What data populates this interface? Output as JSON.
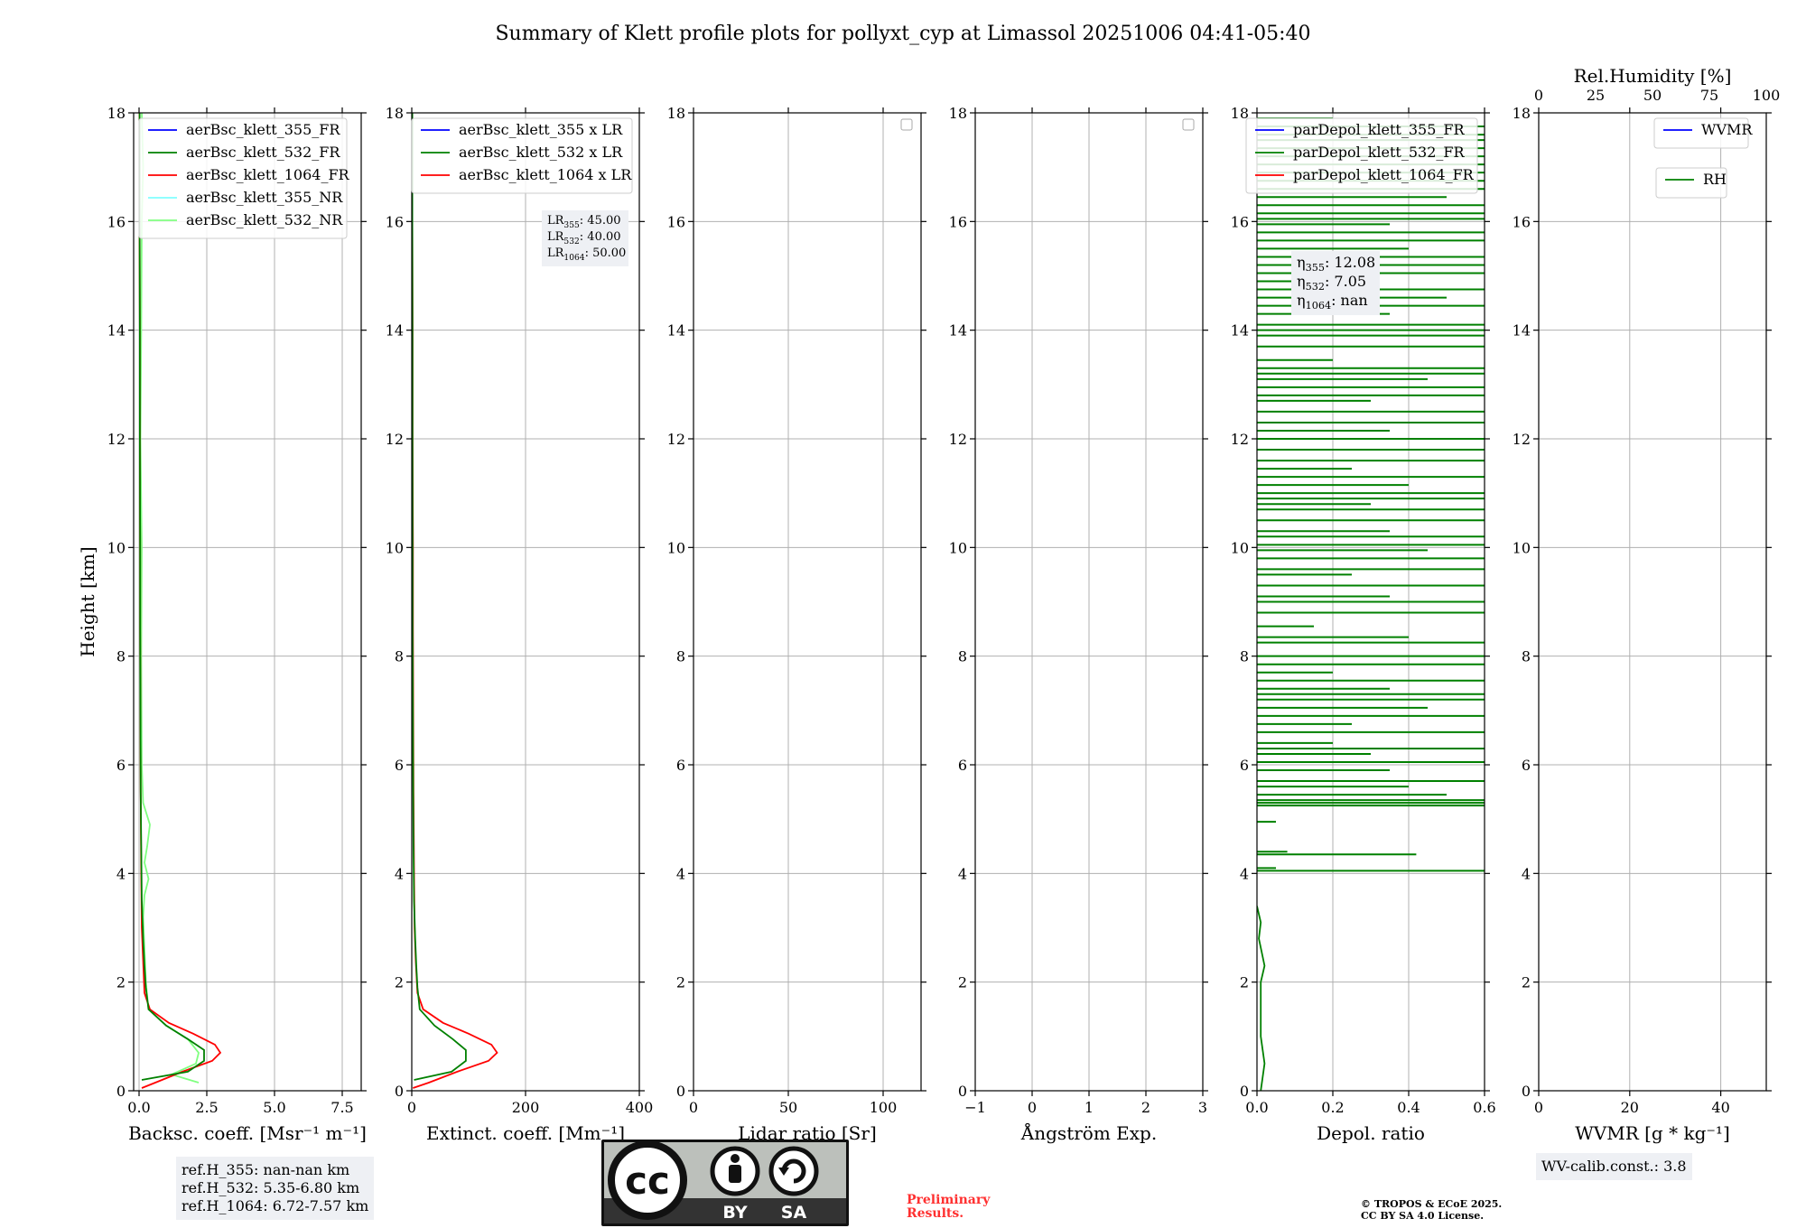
{
  "figure_title": "Summary of Klett profile plots for pollyxt_cyp at Limassol 20251006 04:41-05:40",
  "colors": {
    "blue": "#0000ff",
    "green": "#008000",
    "red": "#ff0000",
    "cyan": "#80ffff",
    "lightgreen": "#80ff80",
    "grid": "#b0b0b0",
    "textbox": "#eef0f4"
  },
  "chart_data": [
    {
      "type": "line",
      "id": "bsc",
      "xlabel": "Backsc. coeff. [Msr⁻¹ m⁻¹]",
      "ylabel": "Height [km]",
      "xlim": [
        -0.2,
        8.2
      ],
      "ylim": [
        0,
        18
      ],
      "xticks": [
        0,
        2.5,
        5,
        7.5
      ],
      "xticklabels": [
        "0.0",
        "2.5",
        "5.0",
        "7.5"
      ],
      "yticks": [
        0,
        2,
        4,
        6,
        8,
        10,
        12,
        14,
        16,
        18
      ],
      "legend": [
        "aerBsc_klett_355_FR",
        "aerBsc_klett_532_FR",
        "aerBsc_klett_1064_FR",
        "aerBsc_klett_355_NR",
        "aerBsc_klett_532_NR"
      ],
      "legend_colors": [
        "blue",
        "green",
        "red",
        "cyan",
        "lightgreen"
      ],
      "series": [
        {
          "name": "aerBsc_klett_532_NR",
          "color": "lightgreen",
          "points": [
            [
              2.2,
              0.15
            ],
            [
              1.2,
              0.3
            ],
            [
              2.1,
              0.5
            ],
            [
              2.2,
              0.7
            ],
            [
              1.8,
              0.95
            ],
            [
              1.0,
              1.2
            ],
            [
              0.35,
              1.5
            ],
            [
              0.25,
              2.0
            ],
            [
              0.2,
              2.6
            ],
            [
              0.15,
              3.2
            ],
            [
              0.2,
              3.6
            ],
            [
              0.35,
              3.9
            ],
            [
              0.2,
              4.2
            ],
            [
              0.3,
              4.5
            ],
            [
              0.4,
              4.9
            ],
            [
              0.15,
              5.3
            ],
            [
              0.1,
              6
            ],
            [
              0.08,
              8
            ],
            [
              0.1,
              10
            ],
            [
              0.05,
              12
            ],
            [
              0.08,
              14
            ],
            [
              0.1,
              16
            ],
            [
              0.15,
              17
            ],
            [
              0.1,
              18
            ]
          ]
        },
        {
          "name": "aerBsc_klett_1064_FR",
          "color": "red",
          "points": [
            [
              0.1,
              0.05
            ],
            [
              0.6,
              0.15
            ],
            [
              1.6,
              0.35
            ],
            [
              2.7,
              0.55
            ],
            [
              3.0,
              0.7
            ],
            [
              2.8,
              0.85
            ],
            [
              2.0,
              1.05
            ],
            [
              1.1,
              1.25
            ],
            [
              0.4,
              1.5
            ],
            [
              0.2,
              1.8
            ],
            [
              0.15,
              2.4
            ],
            [
              0.1,
              3.0
            ],
            [
              0.08,
              4.0
            ],
            [
              0.06,
              5.5
            ],
            [
              0.05,
              7
            ],
            [
              0.04,
              8.5
            ],
            [
              0.04,
              10
            ],
            [
              0.03,
              12
            ],
            [
              0.03,
              14
            ],
            [
              0.02,
              16
            ],
            [
              0.02,
              18
            ]
          ]
        },
        {
          "name": "aerBsc_klett_532_FR",
          "color": "green",
          "points": [
            [
              0.1,
              0.2
            ],
            [
              1.8,
              0.35
            ],
            [
              2.4,
              0.55
            ],
            [
              2.4,
              0.75
            ],
            [
              1.8,
              0.95
            ],
            [
              1.0,
              1.2
            ],
            [
              0.35,
              1.5
            ],
            [
              0.25,
              1.9
            ],
            [
              0.2,
              2.3
            ],
            [
              0.15,
              2.8
            ],
            [
              0.1,
              3.5
            ],
            [
              0.08,
              4.5
            ],
            [
              0.06,
              5.5
            ],
            [
              0.05,
              7
            ],
            [
              0.04,
              8.5
            ],
            [
              0.04,
              10
            ],
            [
              0.03,
              12
            ],
            [
              0.03,
              14
            ],
            [
              0.02,
              16
            ],
            [
              0.02,
              18
            ]
          ]
        }
      ],
      "note": [
        "ref.H_355: nan-nan km",
        "ref.H_532: 5.35-6.80 km",
        "ref.H_1064: 6.72-7.57 km"
      ]
    },
    {
      "type": "line",
      "id": "ext",
      "xlabel": "Extinct. coeff. [Mm⁻¹]",
      "xlim": [
        0,
        400
      ],
      "ylim": [
        0,
        18
      ],
      "xticks": [
        0,
        200,
        400
      ],
      "xticklabels": [
        "0",
        "200",
        "400"
      ],
      "yticks": [
        0,
        2,
        4,
        6,
        8,
        10,
        12,
        14,
        16,
        18
      ],
      "legend": [
        "aerBsc_klett_355 x LR",
        "aerBsc_klett_532 x LR",
        "aerBsc_klett_1064 x LR"
      ],
      "legend_colors": [
        "blue",
        "green",
        "red"
      ],
      "lr_box": [
        {
          "base": "LR",
          "sub": "355",
          "value": ": 45.00"
        },
        {
          "base": "LR",
          "sub": "532",
          "value": ": 40.00"
        },
        {
          "base": "LR",
          "sub": "1064",
          "value": ": 50.00"
        }
      ],
      "series": [
        {
          "name": "aerBsc_klett_1064 x LR",
          "color": "red",
          "points": [
            [
              2,
              0.05
            ],
            [
              30,
              0.15
            ],
            [
              80,
              0.35
            ],
            [
              135,
              0.55
            ],
            [
              150,
              0.7
            ],
            [
              140,
              0.85
            ],
            [
              100,
              1.05
            ],
            [
              55,
              1.25
            ],
            [
              20,
              1.5
            ],
            [
              10,
              1.8
            ],
            [
              7,
              2.4
            ],
            [
              5,
              3.0
            ],
            [
              4,
              4.0
            ],
            [
              3,
              5.5
            ],
            [
              2.5,
              7
            ],
            [
              2,
              8.5
            ],
            [
              2,
              10
            ],
            [
              1.5,
              12
            ],
            [
              1.5,
              14
            ],
            [
              1,
              16
            ],
            [
              1,
              18
            ]
          ]
        },
        {
          "name": "aerBsc_klett_532 x LR",
          "color": "green",
          "points": [
            [
              4,
              0.2
            ],
            [
              70,
              0.35
            ],
            [
              95,
              0.55
            ],
            [
              95,
              0.75
            ],
            [
              72,
              0.95
            ],
            [
              40,
              1.2
            ],
            [
              14,
              1.5
            ],
            [
              10,
              1.9
            ],
            [
              8,
              2.3
            ],
            [
              6,
              2.8
            ],
            [
              4,
              3.5
            ],
            [
              3,
              4.5
            ],
            [
              2.5,
              5.5
            ],
            [
              2,
              7
            ],
            [
              1.5,
              8.5
            ],
            [
              1.5,
              10
            ],
            [
              1.2,
              12
            ],
            [
              1.2,
              14
            ],
            [
              1,
              16
            ],
            [
              1,
              18
            ]
          ]
        }
      ]
    },
    {
      "type": "line",
      "id": "lr",
      "xlabel": "Lidar ratio [Sr]",
      "xlim": [
        0,
        120
      ],
      "ylim": [
        0,
        18
      ],
      "xticks": [
        0,
        50,
        100
      ],
      "xticklabels": [
        "0",
        "50",
        "100"
      ],
      "yticks": [
        0,
        2,
        4,
        6,
        8,
        10,
        12,
        14,
        16,
        18
      ],
      "series": []
    },
    {
      "type": "line",
      "id": "ang",
      "xlabel": "Ångström Exp.",
      "xlim": [
        -1,
        3
      ],
      "ylim": [
        0,
        18
      ],
      "xticks": [
        -1,
        0,
        1,
        2,
        3
      ],
      "xticklabels": [
        "−1",
        "0",
        "1",
        "2",
        "3"
      ],
      "yticks": [
        0,
        2,
        4,
        6,
        8,
        10,
        12,
        14,
        16,
        18
      ],
      "series": []
    },
    {
      "type": "line",
      "id": "depol",
      "xlabel": "Depol. ratio",
      "xlim": [
        0,
        0.6
      ],
      "ylim": [
        0,
        18
      ],
      "xticks": [
        0,
        0.2,
        0.4,
        0.6
      ],
      "xticklabels": [
        "0.0",
        "0.2",
        "0.4",
        "0.6"
      ],
      "yticks": [
        0,
        2,
        4,
        6,
        8,
        10,
        12,
        14,
        16,
        18
      ],
      "legend": [
        "parDepol_klett_355_FR",
        "parDepol_klett_532_FR",
        "parDepol_klett_1064_FR"
      ],
      "legend_colors": [
        "blue",
        "green",
        "red"
      ],
      "eta_box": [
        {
          "base": "η",
          "sub": "355",
          "value": ": 12.08"
        },
        {
          "base": "η",
          "sub": "532",
          "value": ": 7.05"
        },
        {
          "base": "η",
          "sub": "1064",
          "value": ": nan"
        }
      ],
      "series": [
        {
          "name": "parDepol_klett_532_FR",
          "color": "green",
          "points": [
            [
              0.01,
              0
            ],
            [
              0.02,
              0.5
            ],
            [
              0.01,
              1.0
            ],
            [
              0.01,
              1.5
            ],
            [
              0.01,
              2.0
            ],
            [
              0.02,
              2.3
            ],
            [
              0.005,
              2.8
            ],
            [
              0.01,
              3.1
            ],
            [
              0.0,
              3.4
            ]
          ]
        }
      ],
      "spikes": [
        [
          4.05,
          0.6
        ],
        [
          4.1,
          0.05
        ],
        [
          4.35,
          0.42
        ],
        [
          4.4,
          0.08
        ],
        [
          4.95,
          0.05
        ],
        [
          5.25,
          0.6
        ],
        [
          5.3,
          0.6
        ],
        [
          5.35,
          0.6
        ],
        [
          5.45,
          0.5
        ],
        [
          5.6,
          0.4
        ],
        [
          5.7,
          0.6
        ],
        [
          5.9,
          0.35
        ],
        [
          6.05,
          0.6
        ],
        [
          6.2,
          0.3
        ],
        [
          6.3,
          0.6
        ],
        [
          6.4,
          0.2
        ],
        [
          6.6,
          0.6
        ],
        [
          6.75,
          0.25
        ],
        [
          6.9,
          0.6
        ],
        [
          7.05,
          0.45
        ],
        [
          7.2,
          0.6
        ],
        [
          7.3,
          0.6
        ],
        [
          7.4,
          0.35
        ],
        [
          7.55,
          0.6
        ],
        [
          7.7,
          0.2
        ],
        [
          7.85,
          0.6
        ],
        [
          8.0,
          0.6
        ],
        [
          8.25,
          0.6
        ],
        [
          8.35,
          0.4
        ],
        [
          8.55,
          0.15
        ],
        [
          8.8,
          0.6
        ],
        [
          9.0,
          0.6
        ],
        [
          9.1,
          0.35
        ],
        [
          9.3,
          0.6
        ],
        [
          9.5,
          0.25
        ],
        [
          9.6,
          0.6
        ],
        [
          9.8,
          0.6
        ],
        [
          9.95,
          0.45
        ],
        [
          10.05,
          0.6
        ],
        [
          10.2,
          0.6
        ],
        [
          10.3,
          0.35
        ],
        [
          10.5,
          0.6
        ],
        [
          10.7,
          0.6
        ],
        [
          10.8,
          0.3
        ],
        [
          10.9,
          0.6
        ],
        [
          11.0,
          0.6
        ],
        [
          11.15,
          0.4
        ],
        [
          11.3,
          0.6
        ],
        [
          11.45,
          0.25
        ],
        [
          11.6,
          0.6
        ],
        [
          11.8,
          0.6
        ],
        [
          12.0,
          0.6
        ],
        [
          12.15,
          0.35
        ],
        [
          12.3,
          0.6
        ],
        [
          12.5,
          0.6
        ],
        [
          12.7,
          0.3
        ],
        [
          12.8,
          0.6
        ],
        [
          12.95,
          0.6
        ],
        [
          13.1,
          0.45
        ],
        [
          13.2,
          0.6
        ],
        [
          13.3,
          0.6
        ],
        [
          13.45,
          0.2
        ],
        [
          13.7,
          0.6
        ],
        [
          13.9,
          0.6
        ],
        [
          14.0,
          0.6
        ],
        [
          14.1,
          0.6
        ],
        [
          14.3,
          0.35
        ],
        [
          14.45,
          0.6
        ],
        [
          14.6,
          0.5
        ],
        [
          14.75,
          0.6
        ],
        [
          14.9,
          0.3
        ],
        [
          15.05,
          0.6
        ],
        [
          15.2,
          0.6
        ],
        [
          15.35,
          0.6
        ],
        [
          15.5,
          0.4
        ],
        [
          15.65,
          0.6
        ],
        [
          15.8,
          0.6
        ],
        [
          15.95,
          0.35
        ],
        [
          16.05,
          0.6
        ],
        [
          16.15,
          0.6
        ],
        [
          16.3,
          0.6
        ],
        [
          16.45,
          0.5
        ],
        [
          16.6,
          0.6
        ],
        [
          16.75,
          0.6
        ],
        [
          16.9,
          0.6
        ],
        [
          17.05,
          0.6
        ],
        [
          17.2,
          0.6
        ],
        [
          17.35,
          0.6
        ],
        [
          17.5,
          0.6
        ],
        [
          17.6,
          0.6
        ],
        [
          17.75,
          0.6
        ],
        [
          17.9,
          0.2
        ]
      ]
    },
    {
      "type": "line",
      "id": "wv",
      "xlabel": "WVMR [g * kg⁻¹]",
      "top_xlabel": "Rel.Humidity [%]",
      "xlim": [
        0,
        50
      ],
      "ylim": [
        0,
        18
      ],
      "xticks": [
        0,
        20,
        40
      ],
      "xticklabels": [
        "0",
        "20",
        "40"
      ],
      "top_xlim": [
        0,
        100
      ],
      "top_xticks": [
        0,
        25,
        50,
        75,
        100
      ],
      "top_xticklabels": [
        "0",
        "25",
        "50",
        "75",
        "100"
      ],
      "yticks": [
        0,
        2,
        4,
        6,
        8,
        10,
        12,
        14,
        16,
        18
      ],
      "legend": [
        "WVMR"
      ],
      "legend_colors": [
        "blue"
      ],
      "legend2": [
        "RH"
      ],
      "legend2_colors": [
        "green"
      ],
      "series": [],
      "note": [
        "WV-calib.const.: 3.8"
      ]
    }
  ],
  "license": {
    "cc_label": "cc",
    "by_label": "BY",
    "sa_label": "SA"
  },
  "preliminary": [
    "Preliminary",
    "Results."
  ],
  "copyright": [
    "© TROPOS & ECoE 2025.",
    "CC BY SA 4.0 License."
  ]
}
